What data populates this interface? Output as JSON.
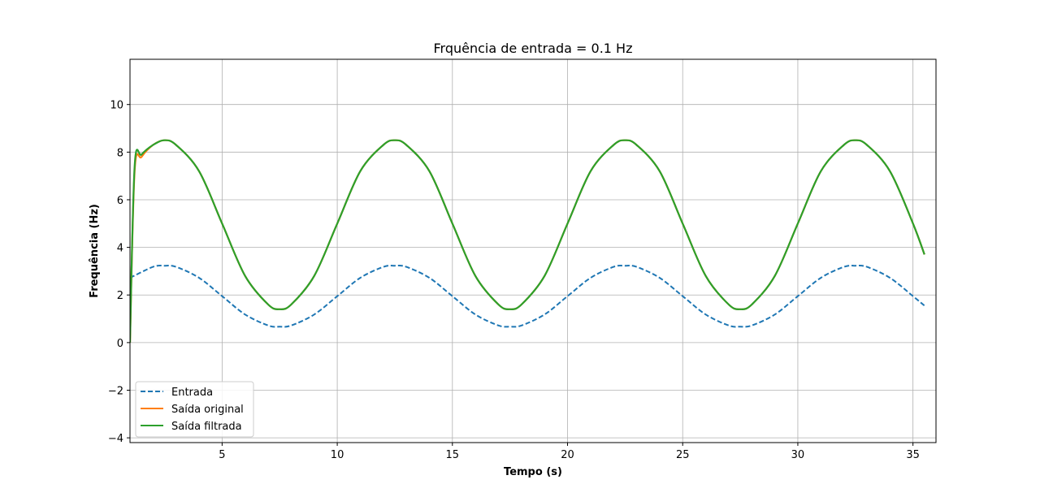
{
  "chart_data": {
    "type": "line",
    "title": "Frquência de entrada = 0.1 Hz",
    "xlabel": "Tempo (s)",
    "ylabel": "Frequência (Hz)",
    "xlim": [
      1.0,
      36.0
    ],
    "ylim": [
      -4.2,
      11.9
    ],
    "xticks": [
      5,
      10,
      15,
      20,
      25,
      30,
      35
    ],
    "yticks": [
      -4,
      -2,
      0,
      2,
      4,
      6,
      8,
      10
    ],
    "grid": true,
    "legend_position": "lower-left",
    "series": [
      {
        "name": "Entrada",
        "style": "dashed",
        "color": "#1f77b4",
        "x": [
          1.0,
          2.0,
          2.5,
          3.0,
          4.0,
          5.0,
          6.0,
          7.0,
          7.5,
          8.0,
          9.0,
          10.0,
          11.0,
          12.0,
          12.5,
          13.0,
          14.0,
          15.0,
          16.0,
          17.0,
          17.5,
          18.0,
          19.0,
          20.0,
          21.0,
          22.0,
          22.5,
          23.0,
          24.0,
          25.0,
          26.0,
          27.0,
          27.5,
          28.0,
          29.0,
          30.0,
          31.0,
          32.0,
          32.5,
          33.0,
          34.0,
          35.0,
          35.5
        ],
        "y": [
          2.72,
          3.18,
          3.23,
          3.18,
          2.72,
          1.95,
          1.18,
          0.72,
          0.67,
          0.72,
          1.18,
          1.95,
          2.72,
          3.18,
          3.23,
          3.18,
          2.72,
          1.95,
          1.18,
          0.72,
          0.67,
          0.72,
          1.18,
          1.95,
          2.72,
          3.18,
          3.23,
          3.18,
          2.72,
          1.95,
          1.18,
          0.72,
          0.67,
          0.72,
          1.18,
          1.95,
          2.72,
          3.18,
          3.23,
          3.18,
          2.72,
          1.95,
          1.55
        ]
      },
      {
        "name": "Saída original",
        "style": "solid",
        "color": "#ff7f0e",
        "x": [
          1.0,
          1.2,
          1.5,
          2.0,
          2.5,
          3.0,
          4.0,
          5.0,
          6.0,
          7.0,
          7.5,
          8.0,
          9.0,
          10.0,
          11.0,
          12.0,
          12.5,
          13.0,
          14.0,
          15.0,
          16.0,
          17.0,
          17.5,
          18.0,
          19.0,
          20.0,
          21.0,
          22.0,
          22.5,
          23.0,
          24.0,
          25.0,
          26.0,
          27.0,
          27.5,
          28.0,
          29.0,
          30.0,
          31.0,
          32.0,
          32.5,
          33.0,
          34.0,
          35.0,
          35.5
        ],
        "y": [
          0.0,
          7.2,
          7.8,
          8.3,
          8.5,
          8.3,
          7.2,
          5.0,
          2.8,
          1.6,
          1.4,
          1.6,
          2.8,
          5.0,
          7.2,
          8.3,
          8.5,
          8.3,
          7.2,
          5.0,
          2.8,
          1.6,
          1.4,
          1.6,
          2.8,
          5.0,
          7.2,
          8.3,
          8.5,
          8.3,
          7.2,
          5.0,
          2.8,
          1.6,
          1.4,
          1.6,
          2.8,
          5.0,
          7.2,
          8.3,
          8.5,
          8.3,
          7.2,
          5.0,
          3.7
        ]
      },
      {
        "name": "Saída filtrada",
        "style": "solid",
        "color": "#2ca02c",
        "x": [
          1.0,
          1.2,
          1.5,
          2.0,
          2.5,
          3.0,
          4.0,
          5.0,
          6.0,
          7.0,
          7.5,
          8.0,
          9.0,
          10.0,
          11.0,
          12.0,
          12.5,
          13.0,
          14.0,
          15.0,
          16.0,
          17.0,
          17.5,
          18.0,
          19.0,
          20.0,
          21.0,
          22.0,
          22.5,
          23.0,
          24.0,
          25.0,
          26.0,
          27.0,
          27.5,
          28.0,
          29.0,
          30.0,
          31.0,
          32.0,
          32.5,
          33.0,
          34.0,
          35.0,
          35.5
        ],
        "y": [
          0.0,
          7.4,
          7.9,
          8.3,
          8.5,
          8.3,
          7.2,
          5.0,
          2.8,
          1.6,
          1.4,
          1.6,
          2.8,
          5.0,
          7.2,
          8.3,
          8.5,
          8.3,
          7.2,
          5.0,
          2.8,
          1.6,
          1.4,
          1.6,
          2.8,
          5.0,
          7.2,
          8.3,
          8.5,
          8.3,
          7.2,
          5.0,
          2.8,
          1.6,
          1.4,
          1.6,
          2.8,
          5.0,
          7.2,
          8.3,
          8.5,
          8.3,
          7.2,
          5.0,
          3.7
        ]
      }
    ]
  }
}
